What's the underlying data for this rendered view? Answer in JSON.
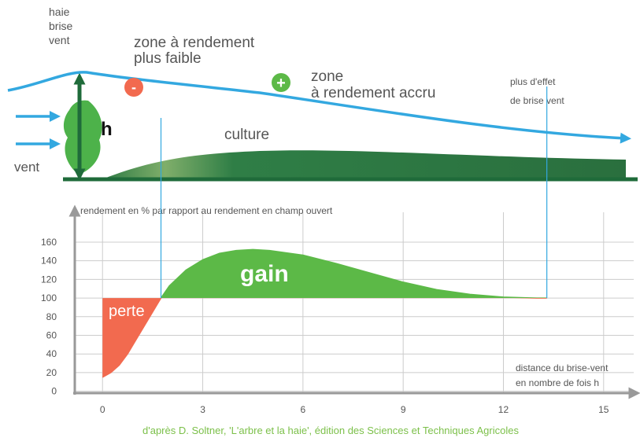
{
  "chart_data": {
    "type": "area",
    "diagram": {
      "hedge_label": [
        "haie",
        "brise",
        "vent"
      ],
      "height_label": "h",
      "wind_label": "vent",
      "low_zone_sign": "-",
      "low_zone_label": [
        "zone à rendement",
        "plus faible"
      ],
      "high_zone_sign": "+",
      "high_zone_label": [
        "zone",
        "à rendement accru"
      ],
      "end_label": [
        "plus d'effet",
        "de brise vent"
      ],
      "crop_label": "culture"
    },
    "ylabel": "rendement en % par rapport au rendement en champ ouvert",
    "xlabel": [
      "distance du brise-vent",
      "en nombre de fois h"
    ],
    "x": [
      0,
      0.25,
      0.5,
      0.75,
      1,
      1.25,
      1.5,
      1.75,
      2,
      2.5,
      3,
      3.5,
      4,
      4.5,
      5,
      6,
      7,
      8,
      9,
      10,
      11,
      12,
      13,
      13.3
    ],
    "values": [
      15,
      20,
      28,
      40,
      55,
      70,
      85,
      100,
      113,
      130,
      141,
      148,
      151,
      152,
      151,
      146,
      137,
      127,
      117,
      109,
      104,
      101,
      100,
      100
    ],
    "baseline": 100,
    "loss_label": "perte",
    "gain_label": "gain",
    "gain_color": "#5cb947",
    "loss_color": "#f26a4f",
    "markers": [
      1.75,
      13.3
    ],
    "xlim": [
      -0.83,
      15.9
    ],
    "xticks": [
      0,
      3,
      6,
      9,
      12,
      15
    ],
    "ylim": [
      -2,
      192
    ],
    "yticks": [
      0,
      20,
      40,
      60,
      80,
      100,
      120,
      140,
      160
    ],
    "grid": true,
    "source": "d'après D. Soltner, 'L'arbre et la haie', édition des Sciences et Techniques Agricoles"
  }
}
